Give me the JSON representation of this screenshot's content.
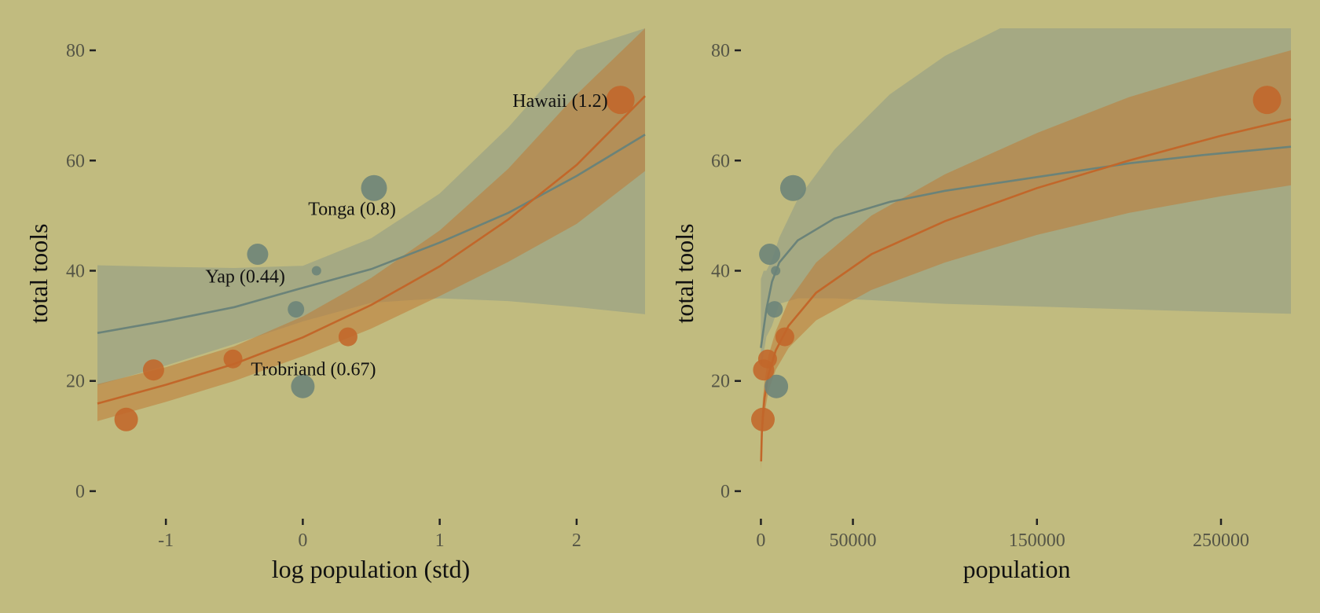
{
  "colors": {
    "background": "#c1bb7f",
    "low_contact": "#6b8379",
    "high_contact": "#c2672a",
    "band_low": "#8e9a86",
    "band_high": "#c07a35"
  },
  "chart_data": [
    {
      "type": "scatter",
      "xlabel": "log population (std)",
      "ylabel": "total tools",
      "xlim": [
        -1.5,
        2.5
      ],
      "ylim": [
        -5,
        84
      ],
      "x_ticks": [
        -1,
        0,
        1,
        2
      ],
      "x_tick_labels": [
        "-1",
        "0",
        "1",
        "2"
      ],
      "y_ticks": [
        0,
        20,
        40,
        60,
        80
      ],
      "y_tick_labels": [
        "0",
        "20",
        "40",
        "60",
        "80"
      ],
      "grid": false,
      "series": [
        {
          "contact": "low",
          "points": [
            {
              "x": -0.33,
              "y": 43,
              "size": 0.9
            },
            {
              "x": -0.05,
              "y": 33,
              "size": 0.7
            },
            {
              "x": 0.1,
              "y": 40,
              "size": 0.4
            },
            {
              "x": 0.0,
              "y": 19,
              "size": 1.0
            },
            {
              "x": 0.52,
              "y": 55,
              "size": 1.1
            }
          ],
          "curve": [
            {
              "x": -1.5,
              "y": 28.7,
              "lo": 19.2,
              "hi": 41.0
            },
            {
              "x": -1.0,
              "y": 30.9,
              "lo": 22.8,
              "hi": 40.7
            },
            {
              "x": -0.5,
              "y": 33.4,
              "lo": 26.7,
              "hi": 40.5
            },
            {
              "x": 0.0,
              "y": 36.9,
              "lo": 30.8,
              "hi": 40.9
            },
            {
              "x": 0.5,
              "y": 40.3,
              "lo": 34.2,
              "hi": 45.9
            },
            {
              "x": 1.0,
              "y": 45.1,
              "lo": 35.0,
              "hi": 54.0
            },
            {
              "x": 1.5,
              "y": 50.5,
              "lo": 34.5,
              "hi": 66.0
            },
            {
              "x": 2.0,
              "y": 57.2,
              "lo": 33.4,
              "hi": 80.0
            },
            {
              "x": 2.5,
              "y": 64.7,
              "lo": 32.1,
              "hi": 84.0
            }
          ]
        },
        {
          "contact": "high",
          "points": [
            {
              "x": -1.29,
              "y": 13,
              "size": 1.0
            },
            {
              "x": -1.09,
              "y": 22,
              "size": 0.9
            },
            {
              "x": -0.51,
              "y": 24,
              "size": 0.8
            },
            {
              "x": 0.33,
              "y": 28,
              "size": 0.8
            },
            {
              "x": 2.32,
              "y": 71,
              "size": 1.2
            }
          ],
          "curve": [
            {
              "x": -1.5,
              "y": 15.9,
              "lo": 12.7,
              "hi": 19.4
            },
            {
              "x": -1.0,
              "y": 19.3,
              "lo": 16.2,
              "hi": 22.5
            },
            {
              "x": -0.5,
              "y": 23.1,
              "lo": 20.0,
              "hi": 26.3
            },
            {
              "x": 0.0,
              "y": 27.9,
              "lo": 24.5,
              "hi": 31.7
            },
            {
              "x": 0.5,
              "y": 33.8,
              "lo": 29.5,
              "hi": 38.7
            },
            {
              "x": 1.0,
              "y": 40.8,
              "lo": 35.4,
              "hi": 47.3
            },
            {
              "x": 1.5,
              "y": 49.3,
              "lo": 41.6,
              "hi": 58.5
            },
            {
              "x": 2.0,
              "y": 59.2,
              "lo": 48.5,
              "hi": 72.0
            },
            {
              "x": 2.5,
              "y": 71.7,
              "lo": 58.1,
              "hi": 84.0
            }
          ]
        }
      ],
      "annotations": [
        {
          "text": "Hawaii (1.2)",
          "x": 2.32,
          "y": 71,
          "anchor": "end"
        },
        {
          "text": "Tonga (0.8)",
          "x": 0.52,
          "y": 55,
          "anchor": "middle"
        },
        {
          "text": "Yap (0.44)",
          "x": -0.33,
          "y": 43,
          "anchor": "end"
        },
        {
          "text": "Trobriand (0.67)",
          "x": 0.0,
          "y": 19,
          "anchor": "start"
        }
      ]
    },
    {
      "type": "scatter",
      "xlabel": "population",
      "ylabel": "total tools",
      "xlim": [
        -10000,
        288000
      ],
      "ylim": [
        -5,
        84
      ],
      "x_ticks": [
        0,
        50000,
        150000,
        250000
      ],
      "x_tick_labels": [
        "0",
        "50000",
        "150000",
        "250000"
      ],
      "y_ticks": [
        0,
        20,
        40,
        60,
        80
      ],
      "y_tick_labels": [
        "0",
        "20",
        "40",
        "60",
        "80"
      ],
      "grid": false,
      "series": [
        {
          "contact": "low",
          "points": [
            {
              "x": 4791,
              "y": 43,
              "size": 0.9
            },
            {
              "x": 7400,
              "y": 33,
              "size": 0.7
            },
            {
              "x": 8000,
              "y": 40,
              "size": 0.4
            },
            {
              "x": 8400,
              "y": 19,
              "size": 1.0
            },
            {
              "x": 17500,
              "y": 55,
              "size": 1.1
            }
          ],
          "curve": [
            {
              "x": 0,
              "y": 26.0,
              "lo": 22.0,
              "hi": 38.5
            },
            {
              "x": 1500,
              "y": 29.5,
              "lo": 25.0,
              "hi": 40.0
            },
            {
              "x": 3000,
              "y": 33.0,
              "lo": 28.0,
              "hi": 40.0
            },
            {
              "x": 6000,
              "y": 38.0,
              "lo": 30.0,
              "hi": 42.0
            },
            {
              "x": 10000,
              "y": 41.5,
              "lo": 34.0,
              "hi": 46.0
            },
            {
              "x": 20000,
              "y": 45.5,
              "lo": 35.0,
              "hi": 53.0
            },
            {
              "x": 40000,
              "y": 49.5,
              "lo": 35.0,
              "hi": 62.0
            },
            {
              "x": 70000,
              "y": 52.5,
              "lo": 34.5,
              "hi": 72.0
            },
            {
              "x": 100000,
              "y": 54.5,
              "lo": 34.0,
              "hi": 79.0
            },
            {
              "x": 130000,
              "y": 56.0,
              "lo": 33.7,
              "hi": 84.0
            },
            {
              "x": 160000,
              "y": 57.5,
              "lo": 33.4,
              "hi": 84.0
            },
            {
              "x": 200000,
              "y": 59.5,
              "lo": 33.0,
              "hi": 84.0
            },
            {
              "x": 240000,
              "y": 61.0,
              "lo": 32.6,
              "hi": 84.0
            },
            {
              "x": 288000,
              "y": 62.5,
              "lo": 32.2,
              "hi": 84.0
            }
          ]
        },
        {
          "contact": "high",
          "points": [
            {
              "x": 1100,
              "y": 13,
              "size": 1.0
            },
            {
              "x": 1500,
              "y": 22,
              "size": 0.9
            },
            {
              "x": 3600,
              "y": 24,
              "size": 0.8
            },
            {
              "x": 13000,
              "y": 28,
              "size": 0.8
            },
            {
              "x": 275000,
              "y": 71,
              "size": 1.2
            }
          ],
          "curve": [
            {
              "x": 100,
              "y": 5.4,
              "lo": 3.5,
              "hi": 8.5
            },
            {
              "x": 500,
              "y": 10.5,
              "lo": 7.5,
              "hi": 13.5
            },
            {
              "x": 1000,
              "y": 13.5,
              "lo": 10.5,
              "hi": 16.5
            },
            {
              "x": 2000,
              "y": 17.0,
              "lo": 14.0,
              "hi": 20.0
            },
            {
              "x": 4000,
              "y": 21.0,
              "lo": 18.0,
              "hi": 24.5
            },
            {
              "x": 8000,
              "y": 25.5,
              "lo": 22.0,
              "hi": 29.0
            },
            {
              "x": 15000,
              "y": 30.0,
              "lo": 26.0,
              "hi": 34.5
            },
            {
              "x": 30000,
              "y": 36.0,
              "lo": 31.0,
              "hi": 41.5
            },
            {
              "x": 60000,
              "y": 43.0,
              "lo": 36.5,
              "hi": 50.0
            },
            {
              "x": 100000,
              "y": 49.0,
              "lo": 41.5,
              "hi": 57.5
            },
            {
              "x": 150000,
              "y": 55.0,
              "lo": 46.5,
              "hi": 65.0
            },
            {
              "x": 200000,
              "y": 60.0,
              "lo": 50.5,
              "hi": 71.5
            },
            {
              "x": 250000,
              "y": 64.5,
              "lo": 53.5,
              "hi": 76.5
            },
            {
              "x": 288000,
              "y": 67.5,
              "lo": 55.5,
              "hi": 80.0
            }
          ]
        }
      ],
      "annotations": []
    }
  ]
}
